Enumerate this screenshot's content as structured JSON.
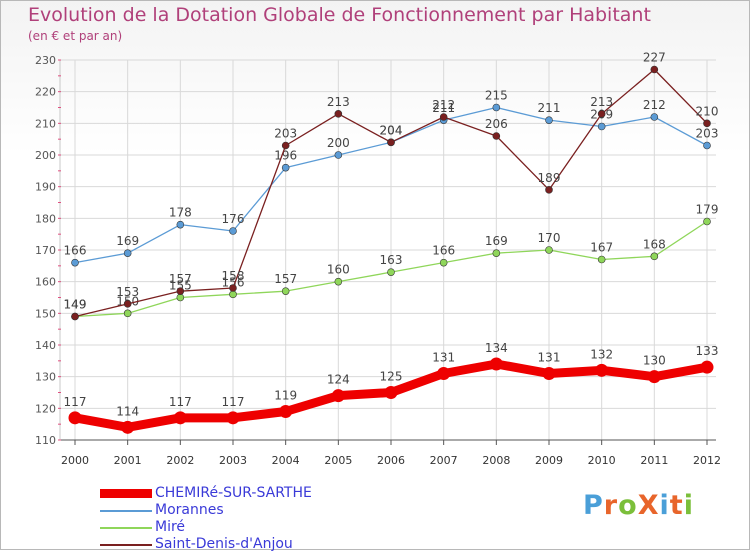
{
  "title": "Evolution de la Dotation Globale de Fonctionnement par Habitant",
  "subtitle": "(en € et par an)",
  "logo_text": "ProXiti",
  "logo_colors": [
    "#4a9fd8",
    "#e8652b",
    "#7bbf3a",
    "#e8652b",
    "#4a9fd8",
    "#e8652b",
    "#7bbf3a"
  ],
  "chart_data": {
    "type": "line",
    "x": [
      "2000",
      "2001",
      "2002",
      "2003",
      "2004",
      "2005",
      "2006",
      "2007",
      "2008",
      "2009",
      "2010",
      "2011",
      "2012"
    ],
    "ylim": [
      110,
      230
    ],
    "yticks": [
      "110",
      "120",
      "130",
      "140",
      "150",
      "160",
      "170",
      "180",
      "190",
      "200",
      "210",
      "220",
      "230"
    ],
    "grid": true,
    "legend_position": "bottom-left",
    "series": [
      {
        "name": "CHEMIRé-SUR-SARTHE",
        "color": "#ee0000",
        "values": [
          117,
          114,
          117,
          117,
          119,
          124,
          125,
          131,
          134,
          131,
          132,
          130,
          133
        ],
        "labels": [
          "117",
          "114",
          "117",
          "117",
          "119",
          "124",
          "125",
          "131",
          "134",
          "131",
          "132",
          "130",
          "133"
        ]
      },
      {
        "name": "Morannes",
        "color": "#5b9bd5",
        "values": [
          166,
          169,
          178,
          176,
          196,
          200,
          204,
          211,
          215,
          211,
          209,
          212,
          203
        ],
        "labels": [
          "166",
          "169",
          "178",
          "176",
          "196",
          "200",
          "204",
          "211",
          "215",
          "211",
          "209",
          "212",
          "203"
        ]
      },
      {
        "name": "Miré",
        "color": "#8fd65a",
        "values": [
          149,
          150,
          155,
          156,
          157,
          160,
          163,
          166,
          169,
          170,
          167,
          168,
          179
        ],
        "labels": [
          "149",
          "150",
          "155",
          "156",
          "157",
          "160",
          "163",
          "166",
          "169",
          "170",
          "167",
          "168",
          "179"
        ]
      },
      {
        "name": "Saint-Denis-d'Anjou",
        "color": "#7a2020",
        "values": [
          149,
          153,
          157,
          158,
          203,
          213,
          204,
          212,
          206,
          189,
          213,
          227,
          210
        ],
        "labels": [
          "149",
          "153",
          "157",
          "158",
          "203",
          "213",
          "204",
          "212",
          "206",
          "189",
          "213",
          "227",
          "210"
        ]
      }
    ]
  }
}
